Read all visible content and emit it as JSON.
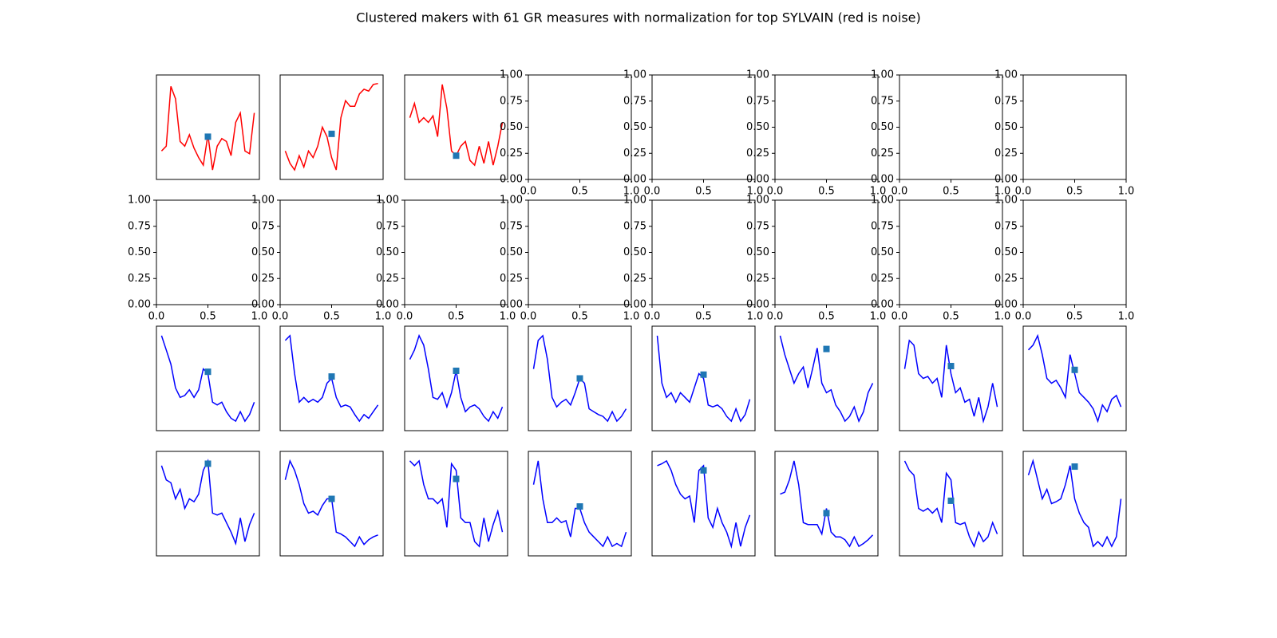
{
  "title": "Clustered makers with 61 GR measures with normalization for top SYLVAIN (red is noise)",
  "chart_data": [
    {
      "type": "line",
      "color": "#ff0000",
      "ylim": [
        -0.05,
        1.05
      ],
      "values": [
        0.25,
        0.3,
        0.93,
        0.8,
        0.35,
        0.3,
        0.42,
        0.28,
        0.18,
        0.1,
        0.42,
        0.05,
        0.3,
        0.38,
        0.35,
        0.2,
        0.55,
        0.65,
        0.25,
        0.22,
        0.65
      ],
      "marker": {
        "value": 0.4,
        "color": "#1f77b4"
      }
    },
    {
      "type": "line",
      "color": "#ff0000",
      "ylim": [
        -0.05,
        1.05
      ],
      "values": [
        0.25,
        0.12,
        0.05,
        0.2,
        0.08,
        0.25,
        0.18,
        0.3,
        0.5,
        0.4,
        0.18,
        0.05,
        0.6,
        0.78,
        0.72,
        0.72,
        0.85,
        0.9,
        0.88,
        0.95,
        0.96
      ],
      "marker": {
        "value": 0.43,
        "color": "#1f77b4"
      }
    },
    {
      "type": "line",
      "color": "#ff0000",
      "ylim": [
        -0.05,
        1.05
      ],
      "values": [
        0.6,
        0.75,
        0.55,
        0.6,
        0.55,
        0.62,
        0.4,
        0.95,
        0.7,
        0.25,
        0.2,
        0.3,
        0.35,
        0.15,
        0.1,
        0.3,
        0.12,
        0.35,
        0.1,
        0.3,
        0.55
      ],
      "marker": {
        "value": 0.2,
        "color": "#1f77b4"
      }
    },
    {
      "type": "empty",
      "xlim": [
        0,
        1
      ],
      "ylim": [
        0,
        1
      ],
      "xticks": [
        {
          "value": 0,
          "label": "0.0"
        },
        {
          "value": 0.5,
          "label": "0.5"
        },
        {
          "value": 1,
          "label": "1.0"
        }
      ],
      "yticks": [
        {
          "value": 0,
          "label": "0.00"
        },
        {
          "value": 0.25,
          "label": "0.25"
        },
        {
          "value": 0.5,
          "label": "0.50"
        },
        {
          "value": 0.75,
          "label": "0.75"
        },
        {
          "value": 1,
          "label": "1.00"
        }
      ]
    },
    {
      "type": "empty",
      "xlim": [
        0,
        1
      ],
      "ylim": [
        0,
        1
      ],
      "xticks": [
        {
          "value": 0,
          "label": "0.0"
        },
        {
          "value": 0.5,
          "label": "0.5"
        },
        {
          "value": 1,
          "label": "1.0"
        }
      ],
      "yticks": [
        {
          "value": 0,
          "label": "0.00"
        },
        {
          "value": 0.25,
          "label": "0.25"
        },
        {
          "value": 0.5,
          "label": "0.50"
        },
        {
          "value": 0.75,
          "label": "0.75"
        },
        {
          "value": 1,
          "label": "1.00"
        }
      ]
    },
    {
      "type": "empty",
      "xlim": [
        0,
        1
      ],
      "ylim": [
        0,
        1
      ],
      "xticks": [
        {
          "value": 0,
          "label": "0.0"
        },
        {
          "value": 0.5,
          "label": "0.5"
        },
        {
          "value": 1,
          "label": "1.0"
        }
      ],
      "yticks": [
        {
          "value": 0,
          "label": "0.00"
        },
        {
          "value": 0.25,
          "label": "0.25"
        },
        {
          "value": 0.5,
          "label": "0.50"
        },
        {
          "value": 0.75,
          "label": "0.75"
        },
        {
          "value": 1,
          "label": "1.00"
        }
      ]
    },
    {
      "type": "empty",
      "xlim": [
        0,
        1
      ],
      "ylim": [
        0,
        1
      ],
      "xticks": [
        {
          "value": 0,
          "label": "0.0"
        },
        {
          "value": 0.5,
          "label": "0.5"
        },
        {
          "value": 1,
          "label": "1.0"
        }
      ],
      "yticks": [
        {
          "value": 0,
          "label": "0.00"
        },
        {
          "value": 0.25,
          "label": "0.25"
        },
        {
          "value": 0.5,
          "label": "0.50"
        },
        {
          "value": 0.75,
          "label": "0.75"
        },
        {
          "value": 1,
          "label": "1.00"
        }
      ]
    },
    {
      "type": "empty",
      "xlim": [
        0,
        1
      ],
      "ylim": [
        0,
        1
      ],
      "xticks": [
        {
          "value": 0,
          "label": "0.0"
        },
        {
          "value": 0.5,
          "label": "0.5"
        },
        {
          "value": 1,
          "label": "1.0"
        }
      ],
      "yticks": [
        {
          "value": 0,
          "label": "0.00"
        },
        {
          "value": 0.25,
          "label": "0.25"
        },
        {
          "value": 0.5,
          "label": "0.50"
        },
        {
          "value": 0.75,
          "label": "0.75"
        },
        {
          "value": 1,
          "label": "1.00"
        }
      ]
    },
    {
      "type": "empty",
      "xlim": [
        0,
        1
      ],
      "ylim": [
        0,
        1
      ],
      "xticks": [
        {
          "value": 0,
          "label": "0.0"
        },
        {
          "value": 0.5,
          "label": "0.5"
        },
        {
          "value": 1,
          "label": "1.0"
        }
      ],
      "yticks": [
        {
          "value": 0,
          "label": "0.00"
        },
        {
          "value": 0.25,
          "label": "0.25"
        },
        {
          "value": 0.5,
          "label": "0.50"
        },
        {
          "value": 0.75,
          "label": "0.75"
        },
        {
          "value": 1,
          "label": "1.00"
        }
      ]
    },
    {
      "type": "empty",
      "xlim": [
        0,
        1
      ],
      "ylim": [
        0,
        1
      ],
      "xticks": [
        {
          "value": 0,
          "label": "0.0"
        },
        {
          "value": 0.5,
          "label": "0.5"
        },
        {
          "value": 1,
          "label": "1.0"
        }
      ],
      "yticks": [
        {
          "value": 0,
          "label": "0.00"
        },
        {
          "value": 0.25,
          "label": "0.25"
        },
        {
          "value": 0.5,
          "label": "0.50"
        },
        {
          "value": 0.75,
          "label": "0.75"
        },
        {
          "value": 1,
          "label": "1.00"
        }
      ]
    },
    {
      "type": "empty",
      "xlim": [
        0,
        1
      ],
      "ylim": [
        0,
        1
      ],
      "xticks": [
        {
          "value": 0,
          "label": "0.0"
        },
        {
          "value": 0.5,
          "label": "0.5"
        },
        {
          "value": 1,
          "label": "1.0"
        }
      ],
      "yticks": [
        {
          "value": 0,
          "label": "0.00"
        },
        {
          "value": 0.25,
          "label": "0.25"
        },
        {
          "value": 0.5,
          "label": "0.50"
        },
        {
          "value": 0.75,
          "label": "0.75"
        },
        {
          "value": 1,
          "label": "1.00"
        }
      ]
    },
    {
      "type": "empty",
      "xlim": [
        0,
        1
      ],
      "ylim": [
        0,
        1
      ],
      "xticks": [
        {
          "value": 0,
          "label": "0.0"
        },
        {
          "value": 0.5,
          "label": "0.5"
        },
        {
          "value": 1,
          "label": "1.0"
        }
      ],
      "yticks": [
        {
          "value": 0,
          "label": "0.00"
        },
        {
          "value": 0.25,
          "label": "0.25"
        },
        {
          "value": 0.5,
          "label": "0.50"
        },
        {
          "value": 0.75,
          "label": "0.75"
        },
        {
          "value": 1,
          "label": "1.00"
        }
      ]
    },
    {
      "type": "empty",
      "xlim": [
        0,
        1
      ],
      "ylim": [
        0,
        1
      ],
      "xticks": [
        {
          "value": 0,
          "label": "0.0"
        },
        {
          "value": 0.5,
          "label": "0.5"
        },
        {
          "value": 1,
          "label": "1.0"
        }
      ],
      "yticks": [
        {
          "value": 0,
          "label": "0.00"
        },
        {
          "value": 0.25,
          "label": "0.25"
        },
        {
          "value": 0.5,
          "label": "0.50"
        },
        {
          "value": 0.75,
          "label": "0.75"
        },
        {
          "value": 1,
          "label": "1.00"
        }
      ]
    },
    {
      "type": "empty",
      "xlim": [
        0,
        1
      ],
      "ylim": [
        0,
        1
      ],
      "xticks": [
        {
          "value": 0,
          "label": "0.0"
        },
        {
          "value": 0.5,
          "label": "0.5"
        },
        {
          "value": 1,
          "label": "1.0"
        }
      ],
      "yticks": [
        {
          "value": 0,
          "label": "0.00"
        },
        {
          "value": 0.25,
          "label": "0.25"
        },
        {
          "value": 0.5,
          "label": "0.50"
        },
        {
          "value": 0.75,
          "label": "0.75"
        },
        {
          "value": 1,
          "label": "1.00"
        }
      ]
    },
    {
      "type": "empty",
      "xlim": [
        0,
        1
      ],
      "ylim": [
        0,
        1
      ],
      "xticks": [
        {
          "value": 0,
          "label": "0.0"
        },
        {
          "value": 0.5,
          "label": "0.5"
        },
        {
          "value": 1,
          "label": "1.0"
        }
      ],
      "yticks": [
        {
          "value": 0,
          "label": "0.00"
        },
        {
          "value": 0.25,
          "label": "0.25"
        },
        {
          "value": 0.5,
          "label": "0.50"
        },
        {
          "value": 0.75,
          "label": "0.75"
        },
        {
          "value": 1,
          "label": "1.00"
        }
      ]
    },
    {
      "type": "empty",
      "xlim": [
        0,
        1
      ],
      "ylim": [
        0,
        1
      ],
      "xticks": [
        {
          "value": 0,
          "label": "0.0"
        },
        {
          "value": 0.5,
          "label": "0.5"
        },
        {
          "value": 1,
          "label": "1.0"
        }
      ],
      "yticks": [
        {
          "value": 0,
          "label": "0.00"
        },
        {
          "value": 0.25,
          "label": "0.25"
        },
        {
          "value": 0.5,
          "label": "0.50"
        },
        {
          "value": 0.75,
          "label": "0.75"
        },
        {
          "value": 1,
          "label": "1.00"
        }
      ]
    },
    {
      "type": "line",
      "color": "#0000ff",
      "ylim": [
        -0.05,
        1.05
      ],
      "values": [
        0.95,
        0.8,
        0.65,
        0.4,
        0.3,
        0.32,
        0.38,
        0.3,
        0.38,
        0.6,
        0.55,
        0.25,
        0.22,
        0.25,
        0.15,
        0.08,
        0.05,
        0.15,
        0.05,
        0.12,
        0.25
      ],
      "marker": {
        "value": 0.57,
        "color": "#1f77b4"
      }
    },
    {
      "type": "line",
      "color": "#0000ff",
      "ylim": [
        -0.05,
        1.05
      ],
      "values": [
        0.9,
        0.95,
        0.55,
        0.25,
        0.3,
        0.25,
        0.28,
        0.25,
        0.3,
        0.45,
        0.5,
        0.3,
        0.2,
        0.22,
        0.2,
        0.12,
        0.05,
        0.12,
        0.08,
        0.15,
        0.22
      ],
      "marker": {
        "value": 0.52,
        "color": "#1f77b4"
      }
    },
    {
      "type": "line",
      "color": "#0000ff",
      "ylim": [
        -0.05,
        1.05
      ],
      "values": [
        0.7,
        0.8,
        0.95,
        0.85,
        0.6,
        0.3,
        0.28,
        0.35,
        0.2,
        0.35,
        0.58,
        0.3,
        0.15,
        0.2,
        0.22,
        0.18,
        0.1,
        0.05,
        0.15,
        0.08,
        0.2
      ],
      "marker": {
        "value": 0.58,
        "color": "#1f77b4"
      }
    },
    {
      "type": "line",
      "color": "#0000ff",
      "ylim": [
        -0.05,
        1.05
      ],
      "values": [
        0.6,
        0.9,
        0.95,
        0.7,
        0.3,
        0.2,
        0.25,
        0.28,
        0.22,
        0.35,
        0.5,
        0.45,
        0.18,
        0.15,
        0.12,
        0.1,
        0.05,
        0.15,
        0.05,
        0.1,
        0.18
      ],
      "marker": {
        "value": 0.5,
        "color": "#1f77b4"
      }
    },
    {
      "type": "line",
      "color": "#0000ff",
      "ylim": [
        -0.05,
        1.05
      ],
      "values": [
        0.95,
        0.45,
        0.3,
        0.35,
        0.25,
        0.35,
        0.3,
        0.25,
        0.4,
        0.55,
        0.5,
        0.22,
        0.2,
        0.22,
        0.18,
        0.1,
        0.05,
        0.18,
        0.05,
        0.12,
        0.28
      ],
      "marker": {
        "value": 0.54,
        "color": "#1f77b4"
      }
    },
    {
      "type": "line",
      "color": "#0000ff",
      "ylim": [
        -0.05,
        1.05
      ],
      "values": [
        0.95,
        0.75,
        0.6,
        0.45,
        0.55,
        0.62,
        0.4,
        0.6,
        0.82,
        0.45,
        0.35,
        0.38,
        0.22,
        0.15,
        0.05,
        0.1,
        0.2,
        0.05,
        0.15,
        0.35,
        0.45
      ],
      "marker": {
        "value": 0.81,
        "color": "#1f77b4"
      }
    },
    {
      "type": "line",
      "color": "#0000ff",
      "ylim": [
        -0.05,
        1.05
      ],
      "values": [
        0.6,
        0.9,
        0.85,
        0.55,
        0.5,
        0.52,
        0.45,
        0.5,
        0.3,
        0.85,
        0.55,
        0.35,
        0.4,
        0.25,
        0.28,
        0.1,
        0.3,
        0.05,
        0.2,
        0.45,
        0.2
      ],
      "marker": {
        "value": 0.63,
        "color": "#1f77b4"
      }
    },
    {
      "type": "line",
      "color": "#0000ff",
      "ylim": [
        -0.05,
        1.05
      ],
      "values": [
        0.8,
        0.85,
        0.95,
        0.75,
        0.5,
        0.45,
        0.48,
        0.4,
        0.3,
        0.75,
        0.55,
        0.35,
        0.3,
        0.25,
        0.18,
        0.05,
        0.22,
        0.15,
        0.28,
        0.32,
        0.2
      ],
      "marker": {
        "value": 0.59,
        "color": "#1f77b4"
      }
    },
    {
      "type": "line",
      "color": "#0000ff",
      "ylim": [
        -0.05,
        1.05
      ],
      "values": [
        0.9,
        0.75,
        0.72,
        0.55,
        0.65,
        0.45,
        0.55,
        0.52,
        0.6,
        0.85,
        0.95,
        0.4,
        0.38,
        0.4,
        0.3,
        0.2,
        0.08,
        0.35,
        0.1,
        0.28,
        0.4
      ],
      "marker": {
        "value": 0.92,
        "color": "#1f77b4"
      }
    },
    {
      "type": "line",
      "color": "#0000ff",
      "ylim": [
        -0.05,
        1.05
      ],
      "values": [
        0.75,
        0.95,
        0.85,
        0.7,
        0.5,
        0.4,
        0.42,
        0.38,
        0.48,
        0.55,
        0.55,
        0.2,
        0.18,
        0.15,
        0.1,
        0.05,
        0.15,
        0.07,
        0.12,
        0.15,
        0.17
      ],
      "marker": {
        "value": 0.55,
        "color": "#1f77b4"
      }
    },
    {
      "type": "line",
      "color": "#0000ff",
      "ylim": [
        -0.05,
        1.05
      ],
      "values": [
        0.95,
        0.9,
        0.95,
        0.7,
        0.55,
        0.55,
        0.5,
        0.55,
        0.25,
        0.92,
        0.85,
        0.35,
        0.3,
        0.3,
        0.1,
        0.05,
        0.35,
        0.1,
        0.28,
        0.42,
        0.2
      ],
      "marker": {
        "value": 0.76,
        "color": "#1f77b4"
      }
    },
    {
      "type": "line",
      "color": "#0000ff",
      "ylim": [
        -0.05,
        1.05
      ],
      "values": [
        0.7,
        0.95,
        0.55,
        0.3,
        0.3,
        0.35,
        0.3,
        0.32,
        0.15,
        0.45,
        0.45,
        0.3,
        0.2,
        0.15,
        0.1,
        0.05,
        0.15,
        0.05,
        0.08,
        0.05,
        0.2
      ],
      "marker": {
        "value": 0.47,
        "color": "#1f77b4"
      }
    },
    {
      "type": "line",
      "color": "#0000ff",
      "ylim": [
        -0.05,
        1.05
      ],
      "values": [
        0.9,
        0.92,
        0.95,
        0.85,
        0.7,
        0.6,
        0.55,
        0.58,
        0.3,
        0.85,
        0.9,
        0.35,
        0.25,
        0.45,
        0.3,
        0.2,
        0.05,
        0.3,
        0.05,
        0.25,
        0.38
      ],
      "marker": {
        "value": 0.85,
        "color": "#1f77b4"
      }
    },
    {
      "type": "line",
      "color": "#0000ff",
      "ylim": [
        -0.05,
        1.05
      ],
      "values": [
        0.6,
        0.62,
        0.75,
        0.95,
        0.7,
        0.3,
        0.28,
        0.28,
        0.28,
        0.18,
        0.45,
        0.2,
        0.15,
        0.15,
        0.12,
        0.05,
        0.15,
        0.05,
        0.08,
        0.12,
        0.17
      ],
      "marker": {
        "value": 0.4,
        "color": "#1f77b4"
      }
    },
    {
      "type": "line",
      "color": "#0000ff",
      "ylim": [
        -0.05,
        1.05
      ],
      "values": [
        0.95,
        0.85,
        0.8,
        0.45,
        0.42,
        0.45,
        0.4,
        0.45,
        0.3,
        0.82,
        0.75,
        0.3,
        0.28,
        0.3,
        0.15,
        0.05,
        0.2,
        0.1,
        0.15,
        0.3,
        0.18
      ],
      "marker": {
        "value": 0.53,
        "color": "#1f77b4"
      }
    },
    {
      "type": "line",
      "color": "#0000ff",
      "ylim": [
        -0.05,
        1.05
      ],
      "values": [
        0.8,
        0.95,
        0.75,
        0.55,
        0.65,
        0.5,
        0.52,
        0.55,
        0.7,
        0.9,
        0.55,
        0.4,
        0.3,
        0.25,
        0.05,
        0.1,
        0.05,
        0.15,
        0.05,
        0.15,
        0.55
      ],
      "marker": {
        "value": 0.89,
        "color": "#1f77b4"
      }
    }
  ]
}
